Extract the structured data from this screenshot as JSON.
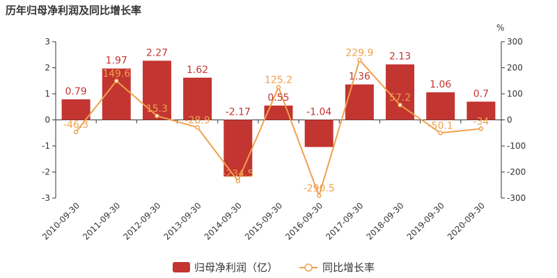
{
  "chart_data": {
    "type": "bar",
    "title": "历年归母净利润及同比增长率",
    "categories": [
      "2010-09-30",
      "2011-09-30",
      "2012-09-30",
      "2013-09-30",
      "2014-09-30",
      "2015-09-30",
      "2016-09-30",
      "2017-09-30",
      "2018-09-30",
      "2019-09-30",
      "2020-09-30"
    ],
    "series": [
      {
        "name": "归母净利润（亿）",
        "type": "bar",
        "axis": "left",
        "values": [
          0.79,
          1.97,
          2.27,
          1.62,
          -2.17,
          0.55,
          -1.04,
          1.36,
          2.13,
          1.06,
          0.7
        ],
        "labels": [
          "0.79",
          "1.97",
          "2.27",
          "1.62",
          "-2.17",
          "0.55",
          "-1.04",
          "1.36",
          "2.13",
          "1.06",
          "0.7"
        ]
      },
      {
        "name": "同比增长率",
        "type": "line",
        "axis": "right",
        "values": [
          -46.3,
          149.6,
          15.3,
          -28.9,
          -234.5,
          125.2,
          -290.5,
          229.9,
          57.2,
          -50.1,
          -34
        ],
        "labels": [
          "-46.3",
          "149.6",
          "15.3",
          "-28.9",
          "-234.5",
          "125.2",
          "-290.5",
          "229.9",
          "57.2",
          "-50.1",
          "-34"
        ]
      }
    ],
    "ylim": [
      -3,
      3
    ],
    "y_ticks": [
      "3",
      "2",
      "1",
      "0",
      "-1",
      "-2",
      "-3"
    ],
    "y2lim": [
      -300,
      300
    ],
    "y2_ticks": [
      "300",
      "200",
      "100",
      "0",
      "-100",
      "-200",
      "-300"
    ],
    "y2_unit": "%",
    "grid": false,
    "legend_position": "bottom-center",
    "colors": {
      "bar": "#c23531",
      "line": "#f0a04b",
      "axis": "#333333"
    }
  }
}
